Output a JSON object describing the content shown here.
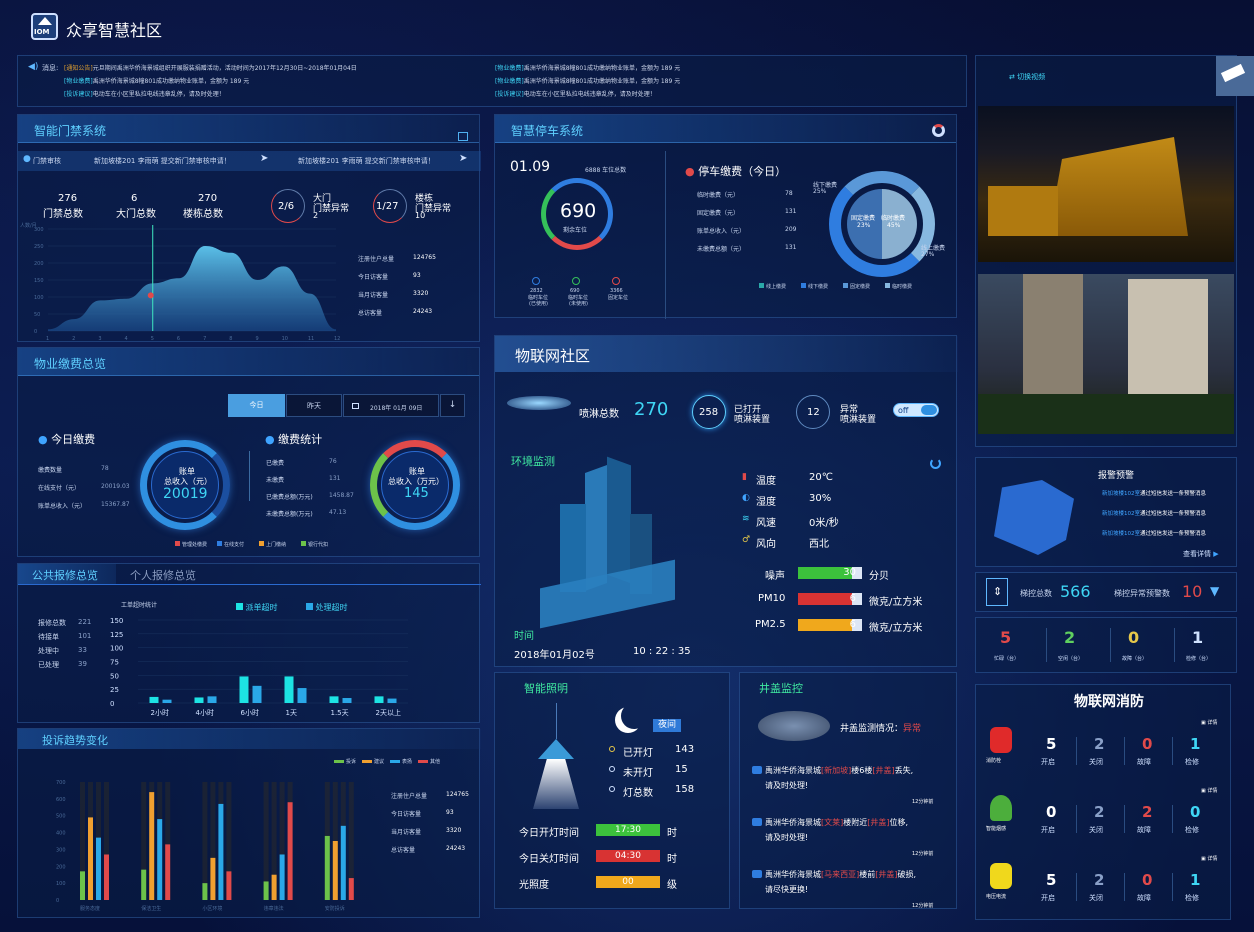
{
  "app": {
    "title": "众享智慧社区",
    "logo": "IOM"
  },
  "notice": {
    "label": "消息:",
    "left": [
      {
        "tag": "[通知公告]",
        "text": "元旦期间禹洲华侨海景城组织开展服装捐赠活动，活动时间为2017年12月30日~2018年01月04日"
      },
      {
        "tag": "[物业缴费]",
        "text": "禹洲华侨海景城8幢801成功缴纳物业账单，金额为 189 元"
      },
      {
        "tag": "[投诉建议]",
        "text": "电动车在小区里私拉电线违章乱停，请及时处理！"
      }
    ],
    "right": [
      {
        "tag": "[物业缴费]",
        "text": "禹洲华侨海景城8幢801成功缴纳物业账单，金额为 189 元"
      },
      {
        "tag": "[物业缴费]",
        "text": "禹洲华侨海景城8幢801成功缴纳物业账单，金额为 189 元"
      },
      {
        "tag": "[投诉建议]",
        "text": "电动车在小区里私拉电线违章乱停，请及时处理！"
      }
    ]
  },
  "access": {
    "title": "智能门禁系统",
    "ticker_label": "门禁审核",
    "ticker": [
      "新加坡楼201  李雨萌  提交新门禁审核申请！",
      "新加坡楼201  李雨萌  提交新门禁审核申请！"
    ],
    "stats": [
      {
        "value": "276",
        "label": "门禁总数"
      },
      {
        "value": "6",
        "label": "大门总数"
      },
      {
        "value": "270",
        "label": "楼栋总数"
      }
    ],
    "rings": [
      {
        "value": "2/6",
        "label1": "大门",
        "label2": "门禁异常",
        "num": "2"
      },
      {
        "value": "1/27",
        "label1": "楼栋",
        "label2": "门禁异常",
        "num": "10"
      }
    ],
    "ylabel": "人数/月",
    "yticks": [
      "300",
      "250",
      "200",
      "150",
      "100",
      "50",
      "0"
    ],
    "xticks": [
      "1",
      "2",
      "3",
      "4",
      "5",
      "6",
      "7",
      "8",
      "9",
      "10",
      "11",
      "12"
    ],
    "info": [
      {
        "label": "注册住户总量",
        "value": "124765"
      },
      {
        "label": "今日访客量",
        "value": "93"
      },
      {
        "label": "当月访客量",
        "value": "3320"
      },
      {
        "label": "总访客量",
        "value": "24243"
      }
    ]
  },
  "parking": {
    "title": "智慧停车系统",
    "date": "01.09",
    "total": "6888 车位总数",
    "remain": "690",
    "remain_label": "剩余车位",
    "legend": [
      {
        "value": "2832",
        "l1": "临时车位",
        "l2": "(已使用)",
        "color": "#2f7de0"
      },
      {
        "value": "690",
        "l1": "临时车位",
        "l2": "(未使用)",
        "color": "#35c05a"
      },
      {
        "value": "3366",
        "l1": "固定车位",
        "l2": "",
        "color": "#e14a4a"
      }
    ],
    "fee_title": "停车缴费（今日）",
    "fees": [
      {
        "label": "临时缴费（元）",
        "value": "78"
      },
      {
        "label": "固定缴费（元）",
        "value": "131"
      },
      {
        "label": "账单总收入（元）",
        "value": "209"
      },
      {
        "label": "未缴费总额（元）",
        "value": "131"
      }
    ],
    "donut_labels": {
      "tl": "线下缴费",
      "tl_pct": "25%",
      "br": "线上缴费",
      "br_pct": "27%",
      "in1": "固定缴费",
      "in1_pct": "23%",
      "in2": "临时缴费",
      "in2_pct": "45%"
    },
    "legend2": [
      "线上缴费",
      "线下缴费",
      "固定缴费",
      "临时缴费"
    ]
  },
  "video": {
    "switch": "切换视频"
  },
  "property": {
    "title": "物业缴费总览",
    "tabs": [
      "今日",
      "昨天"
    ],
    "date": "2018年 01月 09日",
    "today_title": "今日缴费",
    "today": [
      {
        "label": "缴费数量",
        "value": "78"
      },
      {
        "label": "在线支付（元）",
        "value": "20019.03"
      },
      {
        "label": "账单总收入（元）",
        "value": "15367.87"
      }
    ],
    "ring1": {
      "l1": "账单",
      "l2": "总收入（元）",
      "value": "20019"
    },
    "stat_title": "缴费统计",
    "stats": [
      {
        "label": "已缴费",
        "value": "76"
      },
      {
        "label": "未缴费",
        "value": "131"
      },
      {
        "label": "已缴费总额(万元)",
        "value": "1458.87"
      },
      {
        "label": "未缴费总额(万元)",
        "value": "47.13"
      }
    ],
    "ring2": {
      "l1": "账单",
      "l2": "总收入（万元）",
      "value": "145"
    },
    "legend": [
      {
        "name": "管理处缴费",
        "color": "#e14a4a"
      },
      {
        "name": "在线支付",
        "color": "#2f7de0"
      },
      {
        "name": "上门缴纳",
        "color": "#f0a030"
      },
      {
        "name": "银行代扣",
        "color": "#6cc24a"
      }
    ]
  },
  "repair": {
    "tabs": [
      "公共报修总览",
      "个人报修总览"
    ],
    "list": [
      {
        "label": "报修总数",
        "value": "221"
      },
      {
        "label": "待接单",
        "value": "101"
      },
      {
        "label": "处理中",
        "value": "33"
      },
      {
        "label": "已处理",
        "value": "39"
      }
    ],
    "chart_title": "工单超时统计",
    "legend": [
      "派单超时",
      "处理超时"
    ]
  },
  "complaint": {
    "title": "投诉趋势变化",
    "legend": [
      "投诉",
      "建议",
      "表扬",
      "其他"
    ],
    "info": [
      {
        "label": "注册住户总量",
        "value": "124765"
      },
      {
        "label": "今日访客量",
        "value": "93"
      },
      {
        "label": "当月访客量",
        "value": "3320"
      },
      {
        "label": "总访客量",
        "value": "24243"
      }
    ]
  },
  "iot": {
    "title": "物联网社区",
    "spray_label": "喷淋总数",
    "spray_total": "270",
    "opened": "258",
    "opened_l1": "已打开",
    "opened_l2": "喷淋装置",
    "abnormal": "12",
    "abnormal_l1": "异常",
    "abnormal_l2": "喷淋装置",
    "toggle": "off",
    "env_title": "环境监测",
    "weather": [
      {
        "icon": "thermometer-icon",
        "label": "温度",
        "value": "20℃"
      },
      {
        "icon": "humidity-icon",
        "label": "湿度",
        "value": "30%"
      },
      {
        "icon": "wind-icon",
        "label": "风速",
        "value": "0米/秒"
      },
      {
        "icon": "wind-direction-icon",
        "label": "风向",
        "value": "西北"
      }
    ],
    "bars": [
      {
        "label": "噪声",
        "value": "30",
        "unit": "分贝",
        "color": "#3cc23c",
        "fill": 0.85
      },
      {
        "label": "PM10",
        "value": "6",
        "unit": "微克/立方米",
        "color": "#d83333",
        "fill": 0.85
      },
      {
        "label": "PM2.5",
        "value": "6",
        "unit": "微克/立方米",
        "color": "#f0a81c",
        "fill": 0.85
      }
    ],
    "time_label": "时间",
    "date": "2018年01月02号",
    "time": "10 : 22 : 35"
  },
  "lighting": {
    "title": "智能照明",
    "mode": "夜间",
    "stats": [
      {
        "label": "已开灯",
        "value": "143"
      },
      {
        "label": "未开灯",
        "value": "15"
      },
      {
        "label": "灯总数",
        "value": "158"
      }
    ],
    "rows": [
      {
        "label": "今日开灯时间",
        "value": "17:30",
        "unit": "时",
        "color": "#3cc23c"
      },
      {
        "label": "今日关灯时间",
        "value": "04:30",
        "unit": "时",
        "color": "#d83333"
      },
      {
        "label": "光照度",
        "value": "00",
        "unit": "级",
        "color": "#f0a81c"
      }
    ]
  },
  "manhole": {
    "title": "井盖监控",
    "status_label": "井盖监测情况：",
    "status": "异常",
    "items": [
      {
        "pre": "禹洲华侨海景城",
        "a": "[新加坡]",
        "mid": "楼6楼",
        "b": "[井盖]",
        "post": "丢失,",
        "line2": "请及时处理!",
        "time": "12分钟前"
      },
      {
        "pre": "禹洲华侨海景城",
        "a": "[文莱]",
        "mid": "楼附近",
        "b": "[井盖]",
        "post": "位移,",
        "line2": "请及时处理!",
        "time": "12分钟前"
      },
      {
        "pre": "禹洲华侨海景城",
        "a": "[马来西亚]",
        "mid": "楼前",
        "b": "[井盖]",
        "post": "破损,",
        "line2": "请尽快更换!",
        "time": "12分钟前"
      }
    ]
  },
  "alarm": {
    "title": "报警预警",
    "items": [
      "新加坡楼102室通过短信发送一条预警消息",
      "新加坡楼102室通过短信发送一条预警消息",
      "新加坡楼102室通过短信发送一条预警消息"
    ],
    "more": "查看详情"
  },
  "elevator": {
    "total_label": "梯控总数",
    "total": "566",
    "warn_label": "梯控异常预警数",
    "warn": "10",
    "stats": [
      {
        "value": "5",
        "label": "忙碌（台）",
        "color": "#e14a4a"
      },
      {
        "value": "2",
        "label": "空闲（台）",
        "color": "#5fd05f"
      },
      {
        "value": "0",
        "label": "故障（台）",
        "color": "#e6c84a"
      },
      {
        "value": "1",
        "label": "检修（台）",
        "color": "#cfe2ff"
      }
    ]
  },
  "fire": {
    "title": "物联网消防",
    "rows": [
      {
        "name": "消防栓",
        "vals": [
          "5",
          "2",
          "0",
          "1"
        ],
        "color": "#e02a2a"
      },
      {
        "name": "智能烟感",
        "vals": [
          "0",
          "2",
          "2",
          "0"
        ],
        "color": "#4cae3c"
      },
      {
        "name": "电压电流",
        "vals": [
          "5",
          "2",
          "0",
          "1"
        ],
        "color": "#f0d81c"
      }
    ],
    "labels": [
      "开启",
      "关闭",
      "故障",
      "检修"
    ],
    "detail": "详情"
  },
  "chart_data": [
    {
      "type": "area",
      "title": "",
      "xlabel": "",
      "ylabel": "人数/月",
      "x": [
        1,
        2,
        3,
        4,
        5,
        6,
        7,
        8,
        9,
        10,
        11,
        12
      ],
      "values": [
        5,
        35,
        90,
        95,
        140,
        155,
        250,
        230,
        150,
        190,
        110,
        5
      ],
      "ylim": [
        0,
        300
      ]
    },
    {
      "type": "bar",
      "title": "工单超时统计",
      "categories": [
        "2小时",
        "4小时",
        "6小时",
        "1天",
        "1.5天",
        "2天以上"
      ],
      "series": [
        {
          "name": "派单超时",
          "values": [
            11,
            10,
            48,
            48,
            12,
            12
          ]
        },
        {
          "name": "处理超时",
          "values": [
            6,
            12,
            31,
            27,
            9,
            8
          ]
        }
      ],
      "ylim": [
        0,
        150
      ]
    },
    {
      "type": "bar",
      "title": "",
      "categories": [
        "服务态度",
        "保洁卫生",
        "小区环境",
        "违章违法",
        "安防投诉"
      ],
      "series": [
        {
          "name": "投诉",
          "values": [
            170,
            180,
            100,
            110,
            380
          ]
        },
        {
          "name": "建议",
          "values": [
            490,
            640,
            250,
            150,
            350
          ]
        },
        {
          "name": "表扬",
          "values": [
            370,
            480,
            570,
            270,
            440
          ]
        },
        {
          "name": "其他",
          "values": [
            270,
            330,
            170,
            580,
            130
          ]
        }
      ],
      "ylim": [
        0,
        700
      ],
      "yticks": [
        "0",
        "100",
        "200",
        "300",
        "400",
        "500",
        "600",
        "700"
      ]
    }
  ]
}
